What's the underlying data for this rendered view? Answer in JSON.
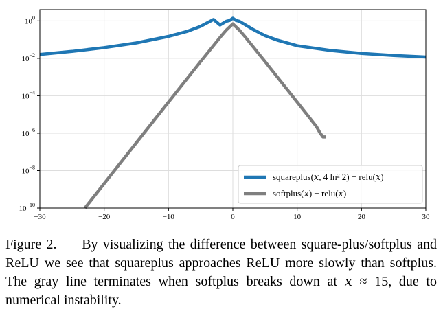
{
  "chart_data": {
    "type": "line",
    "title": "",
    "xlabel": "",
    "ylabel": "",
    "xlim": [
      -30,
      30
    ],
    "ylim_log10": [
      -10,
      0.6
    ],
    "yscale": "log",
    "grid": true,
    "legend_location": "lower-right",
    "x_ticks": [
      -30,
      -20,
      -10,
      0,
      10,
      20,
      30
    ],
    "x_tick_labels": [
      "−30",
      "−20",
      "−10",
      "0",
      "10",
      "20",
      "30"
    ],
    "y_ticks_log10": [
      0,
      -2,
      -4,
      -6,
      -8,
      -10
    ],
    "y_tick_labels": [
      {
        "base": "10",
        "exp": "0"
      },
      {
        "base": "10",
        "exp": "−2"
      },
      {
        "base": "10",
        "exp": "−4"
      },
      {
        "base": "10",
        "exp": "−6"
      },
      {
        "base": "10",
        "exp": "−8"
      },
      {
        "base": "10",
        "exp": "−10"
      }
    ],
    "series": [
      {
        "name": "squareplus(x, 4 ln² 2) − relu(x)",
        "legend_label": "squareplus(𝑥, 4 ln² 2) − relu(𝑥)",
        "color": "#1f77b4",
        "x": [
          -30,
          -25,
          -20,
          -15,
          -10,
          -7,
          -5,
          -3,
          -2,
          -1,
          -0.5,
          0,
          0.5,
          1,
          2,
          3,
          5,
          7,
          10,
          15,
          20,
          25,
          30
        ],
        "log10_y": [
          -1.79,
          -1.63,
          -1.43,
          -1.18,
          -0.83,
          -0.55,
          -0.29,
          0.07,
          -0.22,
          -0.02,
          0.02,
          0.14,
          0.02,
          -0.02,
          -0.22,
          -0.43,
          -0.79,
          -1.04,
          -1.33,
          -1.57,
          -1.74,
          -1.85,
          -1.93
        ]
      },
      {
        "name": "softplus(x) − relu(x)",
        "legend_label": "softplus(𝑥) − relu(𝑥)",
        "color": "#7f7f7f",
        "x": [
          -23,
          -20,
          -15,
          -10,
          -5,
          -2,
          -1,
          0,
          1,
          2,
          5,
          10,
          13,
          13.5,
          14,
          14.5
        ],
        "log10_y": [
          -10.0,
          -8.69,
          -6.51,
          -4.34,
          -2.17,
          -0.89,
          -0.49,
          -0.16,
          -0.49,
          -0.89,
          -2.17,
          -4.34,
          -5.65,
          -5.95,
          -6.2,
          -6.2
        ]
      }
    ]
  },
  "caption": {
    "label": "Figure 2.",
    "text": "By visualizing the difference between square-plus/softplus and ReLU we see that squareplus approaches ReLU more slowly than softplus. The gray line terminates when softplus breaks down at 𝑥 ≈ 15, due to numerical instability."
  }
}
